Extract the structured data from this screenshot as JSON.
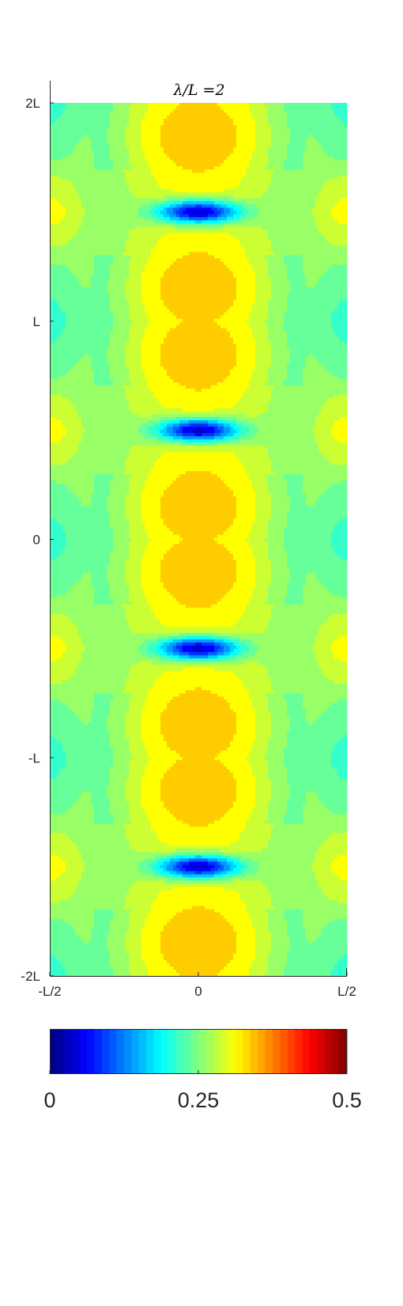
{
  "chart_data": {
    "type": "heatmap",
    "title": "λ/L =2",
    "x_ticks": [
      "-L/2",
      "0",
      "L/2"
    ],
    "y_ticks": [
      "2L",
      "L",
      "0",
      "-L",
      "-2L"
    ],
    "x_range": [
      "-L/2",
      "L/2"
    ],
    "y_range": [
      "-2L",
      "2L"
    ],
    "colormap": "jet",
    "color_range": [
      0,
      0.5
    ],
    "colorbar": {
      "orientation": "horizontal",
      "location": "below",
      "ticks": [
        "0",
        "0.25",
        "0.5"
      ]
    },
    "pattern": {
      "description": "periodic field along y with period L; minima (~0.04) at center x=0 at y=-1.5L,-0.5L,0.5L,1.5L; maxima (~0.37) near center at y=±0.15L around integer multiples of L",
      "period_y": "L",
      "min_value": 0.04,
      "max_value": 0.37
    },
    "levels": 20
  },
  "colors": {
    "axis": "#262626",
    "background": "#ffffff"
  }
}
